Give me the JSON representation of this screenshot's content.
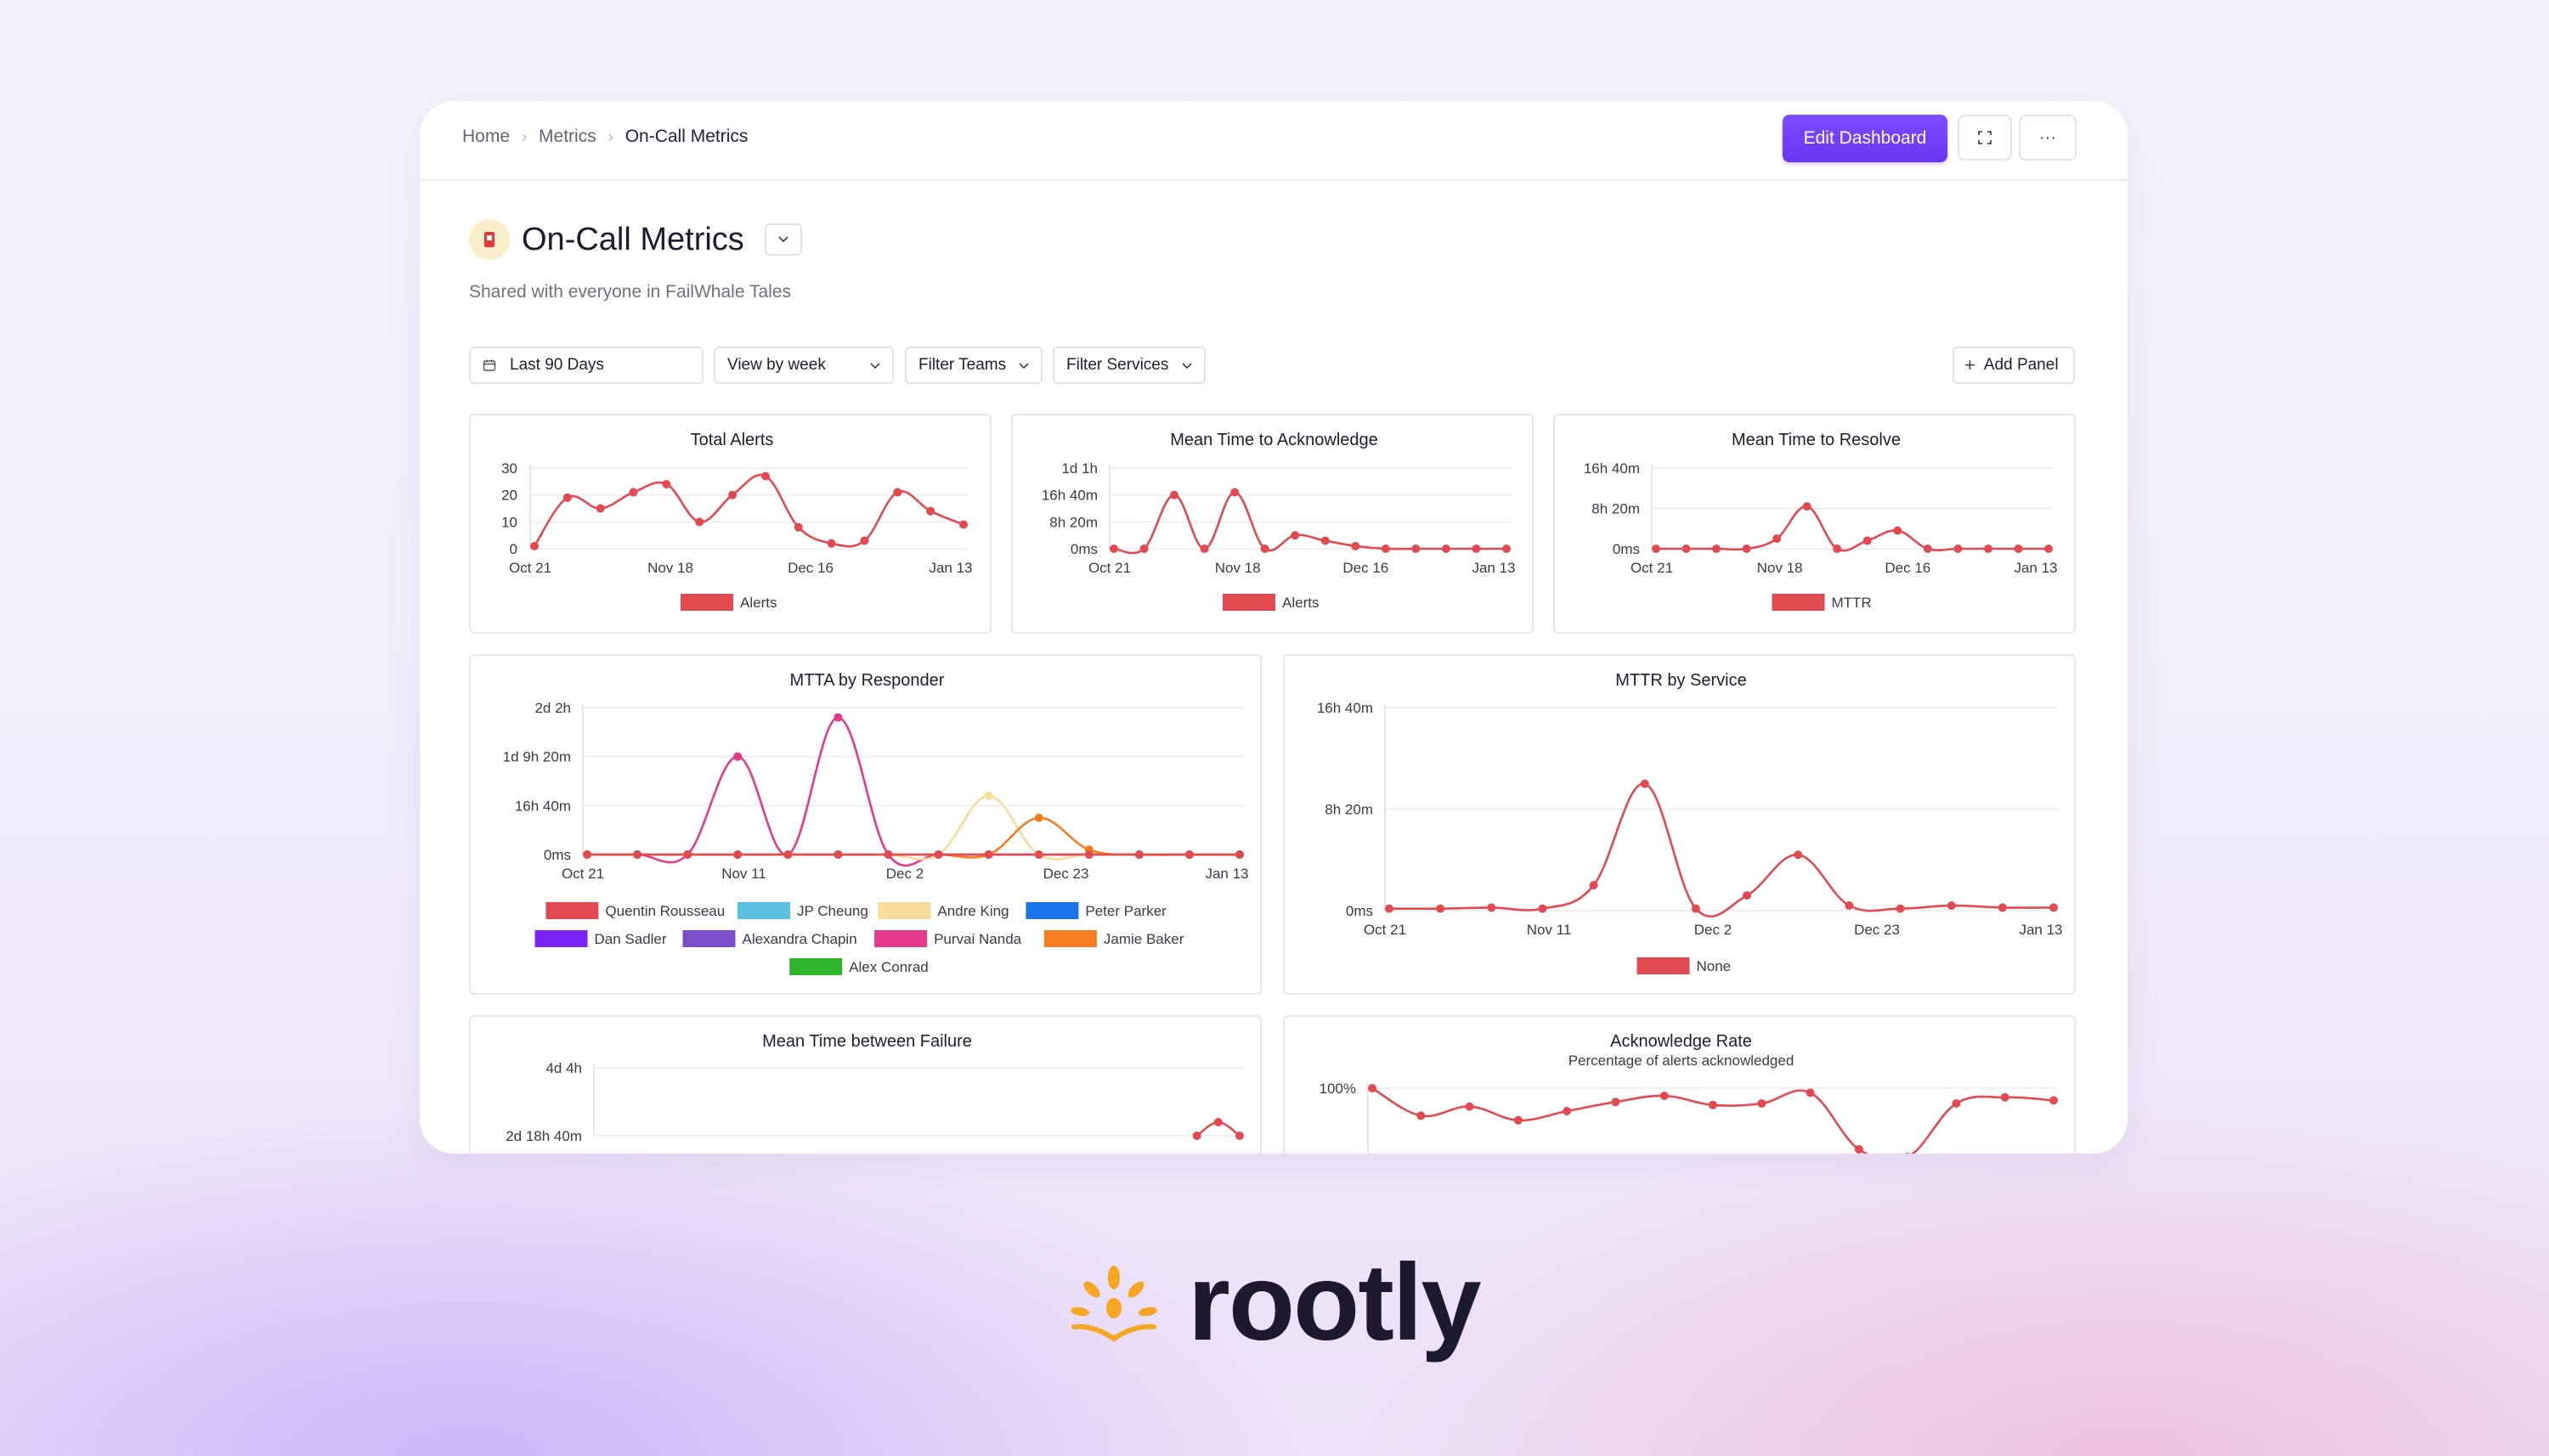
{
  "breadcrumbs": [
    "Home",
    "Metrics",
    "On-Call Metrics"
  ],
  "header": {
    "edit_label": "Edit Dashboard",
    "expand_icon": "expand-icon",
    "more_label": "···"
  },
  "page": {
    "title": "On-Call Metrics",
    "subtitle": "Shared with everyone in FailWhale Tales"
  },
  "filters": {
    "date_range": "Last 90 Days",
    "view_by": "View by week",
    "teams": "Filter Teams",
    "services": "Filter Services",
    "add_panel": "Add Panel"
  },
  "brand": {
    "name": "rootly",
    "color": "#f5a623"
  },
  "colors": {
    "accent": "#6c37f4",
    "series_red": "#e34a50"
  },
  "chart_data": [
    {
      "type": "line",
      "title": "Total Alerts",
      "x_ticks": [
        "Oct 21",
        "Nov 18",
        "Dec 16",
        "Jan 13"
      ],
      "y_ticks": [
        "0",
        "10",
        "20",
        "30"
      ],
      "ylim": [
        0,
        30
      ],
      "series": [
        {
          "name": "Alerts",
          "color": "#e34a50",
          "values": [
            1,
            19,
            15,
            21,
            24,
            10,
            20,
            27,
            8,
            2,
            3,
            21,
            14,
            9
          ]
        }
      ]
    },
    {
      "type": "line",
      "title": "Mean Time to Acknowledge",
      "x_ticks": [
        "Oct 21",
        "Nov 18",
        "Dec 16",
        "Jan 13"
      ],
      "y_ticks": [
        "0ms",
        "8h 20m",
        "16h 40m",
        "1d 1h"
      ],
      "ylim": [
        0,
        3
      ],
      "series": [
        {
          "name": "Alerts",
          "color": "#e34a50",
          "values": [
            0,
            0,
            2.0,
            0,
            2.1,
            0,
            0.5,
            0.3,
            0.1,
            0,
            0,
            0,
            0,
            0
          ]
        }
      ]
    },
    {
      "type": "line",
      "title": "Mean Time to Resolve",
      "x_ticks": [
        "Oct 21",
        "Nov 18",
        "Dec 16",
        "Jan 13"
      ],
      "y_ticks": [
        "0ms",
        "8h 20m",
        "16h 40m"
      ],
      "ylim": [
        0,
        2
      ],
      "series": [
        {
          "name": "MTTR",
          "color": "#e34a50",
          "values": [
            0,
            0,
            0,
            0,
            0.25,
            1.05,
            0,
            0.2,
            0.45,
            0,
            0,
            0,
            0,
            0
          ]
        }
      ]
    },
    {
      "type": "line",
      "title": "MTTA by Responder",
      "x_ticks": [
        "Oct 21",
        "Nov 11",
        "Dec 2",
        "Dec 23",
        "Jan 13"
      ],
      "y_ticks": [
        "0ms",
        "16h 40m",
        "1d 9h 20m",
        "2d 2h"
      ],
      "ylim": [
        0,
        3
      ],
      "legend": [
        "Quentin Rousseau",
        "JP Cheung",
        "Andre King",
        "Peter Parker",
        "Dan Sadler",
        "Alexandra Chapin",
        "Purvai  Nanda",
        "Jamie Baker",
        "Alex Conrad"
      ],
      "legend_colors": [
        "#e34a50",
        "#5bc0de",
        "#f7dc9a",
        "#1a73e8",
        "#7b22f4",
        "#7c4dc9",
        "#e5398c",
        "#f57c1f",
        "#2fb52b"
      ],
      "series": [
        {
          "name": "Purvai  Nanda",
          "color": "#e5398c",
          "values": [
            0,
            0,
            0,
            2.0,
            0,
            2.8,
            0,
            0,
            0,
            0,
            0,
            0,
            0,
            0
          ]
        },
        {
          "name": "Andre King",
          "color": "#f7dc9a",
          "values": [
            0,
            0,
            0,
            0,
            0,
            0,
            0,
            0,
            1.2,
            0,
            0,
            0,
            0,
            0
          ]
        },
        {
          "name": "Jamie Baker",
          "color": "#f57c1f",
          "values": [
            0,
            0,
            0,
            0,
            0,
            0,
            0,
            0,
            0,
            0.75,
            0.1,
            0,
            0,
            0
          ]
        },
        {
          "name": "Quentin Rousseau",
          "color": "#e34a50",
          "values": [
            0,
            0,
            0,
            0,
            0,
            0,
            0,
            0,
            0,
            0,
            0,
            0,
            0,
            0
          ]
        }
      ]
    },
    {
      "type": "line",
      "title": "MTTR by Service",
      "x_ticks": [
        "Oct 21",
        "Nov 11",
        "Dec 2",
        "Dec 23",
        "Jan 13"
      ],
      "y_ticks": [
        "0ms",
        "8h 20m",
        "16h 40m"
      ],
      "ylim": [
        0,
        2
      ],
      "series": [
        {
          "name": "None",
          "color": "#e34a50",
          "values": [
            0.02,
            0.02,
            0.03,
            0.02,
            0.25,
            1.25,
            0.02,
            0.15,
            0.55,
            0.05,
            0.02,
            0.05,
            0.03,
            0.03
          ]
        }
      ]
    },
    {
      "type": "line",
      "title": "Mean Time between Failure",
      "y_ticks": [
        "2d 18h 40m",
        "4d 4h"
      ],
      "ylim": [
        2,
        3
      ],
      "series": [
        {
          "name": "",
          "color": "#e34a50",
          "values": [
            null,
            null,
            null,
            null,
            null,
            null,
            null,
            null,
            null,
            null,
            null,
            null,
            null,
            null,
            null,
            null,
            null,
            null,
            null,
            null,
            null,
            null,
            null,
            null,
            null,
            null,
            null,
            null,
            2.0,
            2.2,
            2.0
          ]
        }
      ]
    },
    {
      "type": "line",
      "title": "Acknowledge Rate",
      "subtitle": "Percentage of alerts acknowledged",
      "y_ticks": [
        "100%"
      ],
      "ylim": [
        0,
        100
      ],
      "series": [
        {
          "name": "",
          "color": "#e34a50",
          "values": [
            100,
            82,
            88,
            79,
            85,
            91,
            95,
            89,
            90,
            97,
            60,
            55,
            90,
            94,
            92
          ]
        }
      ]
    }
  ]
}
